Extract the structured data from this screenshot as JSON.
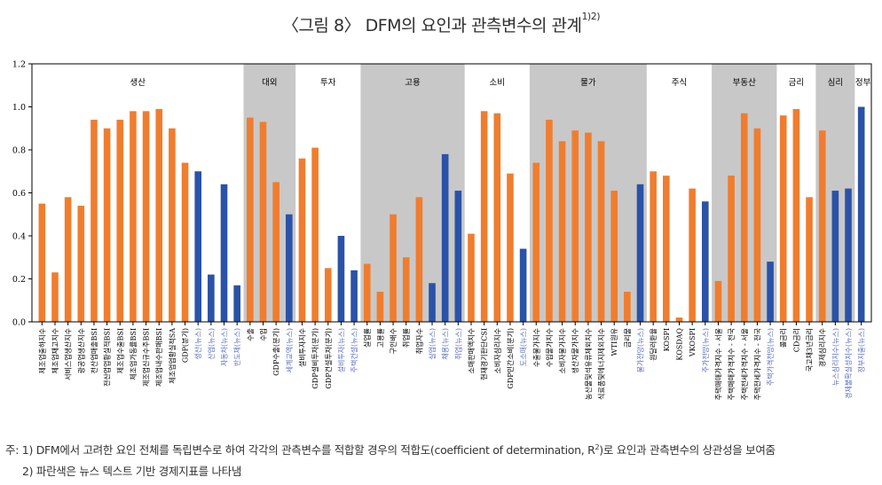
{
  "title": {
    "text": "〈그림 8〉 DFM의 요인과 관측변수의 관계",
    "superscript": "1)2)"
  },
  "notes": {
    "note1_prefix": "주: 1) DFM에서 고려한 요인 전체를 독립변수로 하여 각각의 관측변수를 적합할 경우의 적합도(coefficient of determination, R",
    "note1_sup": "2",
    "note1_suffix": ")로 요인과 관측변수의 상관성을 보여줌",
    "note2": "2) 파란색은 뉴스 텍스트 기반 경제지표를 나타냄"
  },
  "colors": {
    "standard": "#f07d2e",
    "news": "#2a52a8",
    "shade": "#c8c8c8",
    "news_label": "#5b6fc4",
    "axis": "#000000"
  },
  "chart_data": {
    "type": "bar",
    "ylim": [
      0,
      1.2
    ],
    "yticks": [
      "0.0",
      "0.2",
      "0.4",
      "0.6",
      "0.8",
      "1.0",
      "1.2"
    ],
    "groups": [
      {
        "name": "생산",
        "shaded": false,
        "bars": [
          {
            "label": "제조업출하지수",
            "value": 0.55,
            "news": false
          },
          {
            "label": "제조업재고지수",
            "value": 0.23,
            "news": false
          },
          {
            "label": "서비스업생산지수",
            "value": 0.58,
            "news": false
          },
          {
            "label": "광공업생산지수",
            "value": 0.54,
            "news": false
          },
          {
            "label": "전산업매출BSI",
            "value": 0.94,
            "news": false
          },
          {
            "label": "전산업업황실적BSI",
            "value": 0.9,
            "news": false
          },
          {
            "label": "제조업수출BSI",
            "value": 0.94,
            "news": false
          },
          {
            "label": "제조업가동률BSI",
            "value": 0.98,
            "news": false
          },
          {
            "label": "제조업신규수주BSI",
            "value": 0.98,
            "news": false
          },
          {
            "label": "제조업내수판매BSI",
            "value": 0.99,
            "news": false
          },
          {
            "label": "제조업업황실적SA",
            "value": 0.9,
            "news": false
          },
          {
            "label": "GDP(분기)",
            "value": 0.74,
            "news": false
          },
          {
            "label": "생산(뉴스)",
            "value": 0.7,
            "news": true
          },
          {
            "label": "산업(뉴스)",
            "value": 0.22,
            "news": true
          },
          {
            "label": "자동차(뉴스)",
            "value": 0.64,
            "news": true
          },
          {
            "label": "반도체(뉴스)",
            "value": 0.17,
            "news": true
          }
        ]
      },
      {
        "name": "대외",
        "shaded": true,
        "bars": [
          {
            "label": "수출",
            "value": 0.95,
            "news": false
          },
          {
            "label": "수입",
            "value": 0.93,
            "news": false
          },
          {
            "label": "GDP수출(분기)",
            "value": 0.65,
            "news": false
          },
          {
            "label": "세계교역(뉴스)",
            "value": 0.5,
            "news": true
          }
        ]
      },
      {
        "name": "투자",
        "shaded": false,
        "bars": [
          {
            "label": "설비투자지수",
            "value": 0.76,
            "news": false
          },
          {
            "label": "GDP설비투자(분기)",
            "value": 0.81,
            "news": false
          },
          {
            "label": "GDP건설투자(분기)",
            "value": 0.25,
            "news": false
          },
          {
            "label": "설비투자(뉴스)",
            "value": 0.4,
            "news": true
          },
          {
            "label": "주택건설(뉴스)",
            "value": 0.24,
            "news": true
          }
        ]
      },
      {
        "name": "고용",
        "shaded": true,
        "bars": [
          {
            "label": "실업률",
            "value": 0.27,
            "news": false
          },
          {
            "label": "고용률",
            "value": 0.14,
            "news": false
          },
          {
            "label": "구인배수",
            "value": 0.5,
            "news": false
          },
          {
            "label": "취업률",
            "value": 0.3,
            "news": false
          },
          {
            "label": "취업자수",
            "value": 0.58,
            "news": false
          },
          {
            "label": "실업(뉴스)",
            "value": 0.18,
            "news": true
          },
          {
            "label": "채용(뉴스)",
            "value": 0.78,
            "news": true
          },
          {
            "label": "취업(뉴스)",
            "value": 0.61,
            "news": true
          }
        ]
      },
      {
        "name": "소비",
        "shaded": false,
        "bars": [
          {
            "label": "소매판매액지수",
            "value": 0.41,
            "news": false
          },
          {
            "label": "현재경기판단CSI",
            "value": 0.98,
            "news": false
          },
          {
            "label": "소비자심리지수",
            "value": 0.97,
            "news": false
          },
          {
            "label": "GDP민간소비(분기)",
            "value": 0.69,
            "news": false
          },
          {
            "label": "도소매(뉴스)",
            "value": 0.34,
            "news": true
          }
        ]
      },
      {
        "name": "물가",
        "shaded": true,
        "bars": [
          {
            "label": "수출물가지수",
            "value": 0.74,
            "news": false
          },
          {
            "label": "수입물가지수",
            "value": 0.94,
            "news": false
          },
          {
            "label": "소비자물가지수",
            "value": 0.84,
            "news": false
          },
          {
            "label": "생산자물가지수",
            "value": 0.89,
            "news": false
          },
          {
            "label": "농산물및석유류제외지수",
            "value": 0.88,
            "news": false
          },
          {
            "label": "식료품및에너지제외지수",
            "value": 0.84,
            "news": false
          },
          {
            "label": "WTI원유",
            "value": 0.61,
            "news": false
          },
          {
            "label": "금리물",
            "value": 0.14,
            "news": false
          },
          {
            "label": "물가전망(뉴스)",
            "value": 0.64,
            "news": true
          }
        ]
      },
      {
        "name": "주식",
        "shaded": false,
        "bars": [
          {
            "label": "원달러환율",
            "value": 0.7,
            "news": false
          },
          {
            "label": "KOSPI",
            "value": 0.68,
            "news": false
          },
          {
            "label": "KOSDAQ",
            "value": 0.02,
            "news": false
          },
          {
            "label": "VKOSPI",
            "value": 0.62,
            "news": false
          },
          {
            "label": "주가전망(뉴스)",
            "value": 0.56,
            "news": true
          }
        ]
      },
      {
        "name": "부동산",
        "shaded": true,
        "bars": [
          {
            "label": "주택매매가격지수 - 서울",
            "value": 0.19,
            "news": false
          },
          {
            "label": "주택매매가격지수 - 전국",
            "value": 0.68,
            "news": false
          },
          {
            "label": "주택전세가격지수 - 서울",
            "value": 0.97,
            "news": false
          },
          {
            "label": "주택전세가격지수 - 전국",
            "value": 0.9,
            "news": false
          },
          {
            "label": "주택가격전망(뉴스)",
            "value": 0.28,
            "news": true
          }
        ]
      },
      {
        "name": "금리",
        "shaded": false,
        "bars": [
          {
            "label": "콜금리",
            "value": 0.96,
            "news": false
          },
          {
            "label": "CD금리",
            "value": 0.99,
            "news": false
          },
          {
            "label": "국고채3년금리",
            "value": 0.58,
            "news": false
          }
        ]
      },
      {
        "name": "심리",
        "shaded": true,
        "bars": [
          {
            "label": "경제심리지수",
            "value": 0.89,
            "news": false
          },
          {
            "label": "뉴스심리지수(뉴스)",
            "value": 0.61,
            "news": true
          },
          {
            "label": "경제불확실성지수(뉴스)",
            "value": 0.62,
            "news": true
          }
        ]
      },
      {
        "name": "정부",
        "shaded": false,
        "bars": [
          {
            "label": "정부지출(뉴스)",
            "value": 1.0,
            "news": true
          }
        ]
      }
    ]
  }
}
